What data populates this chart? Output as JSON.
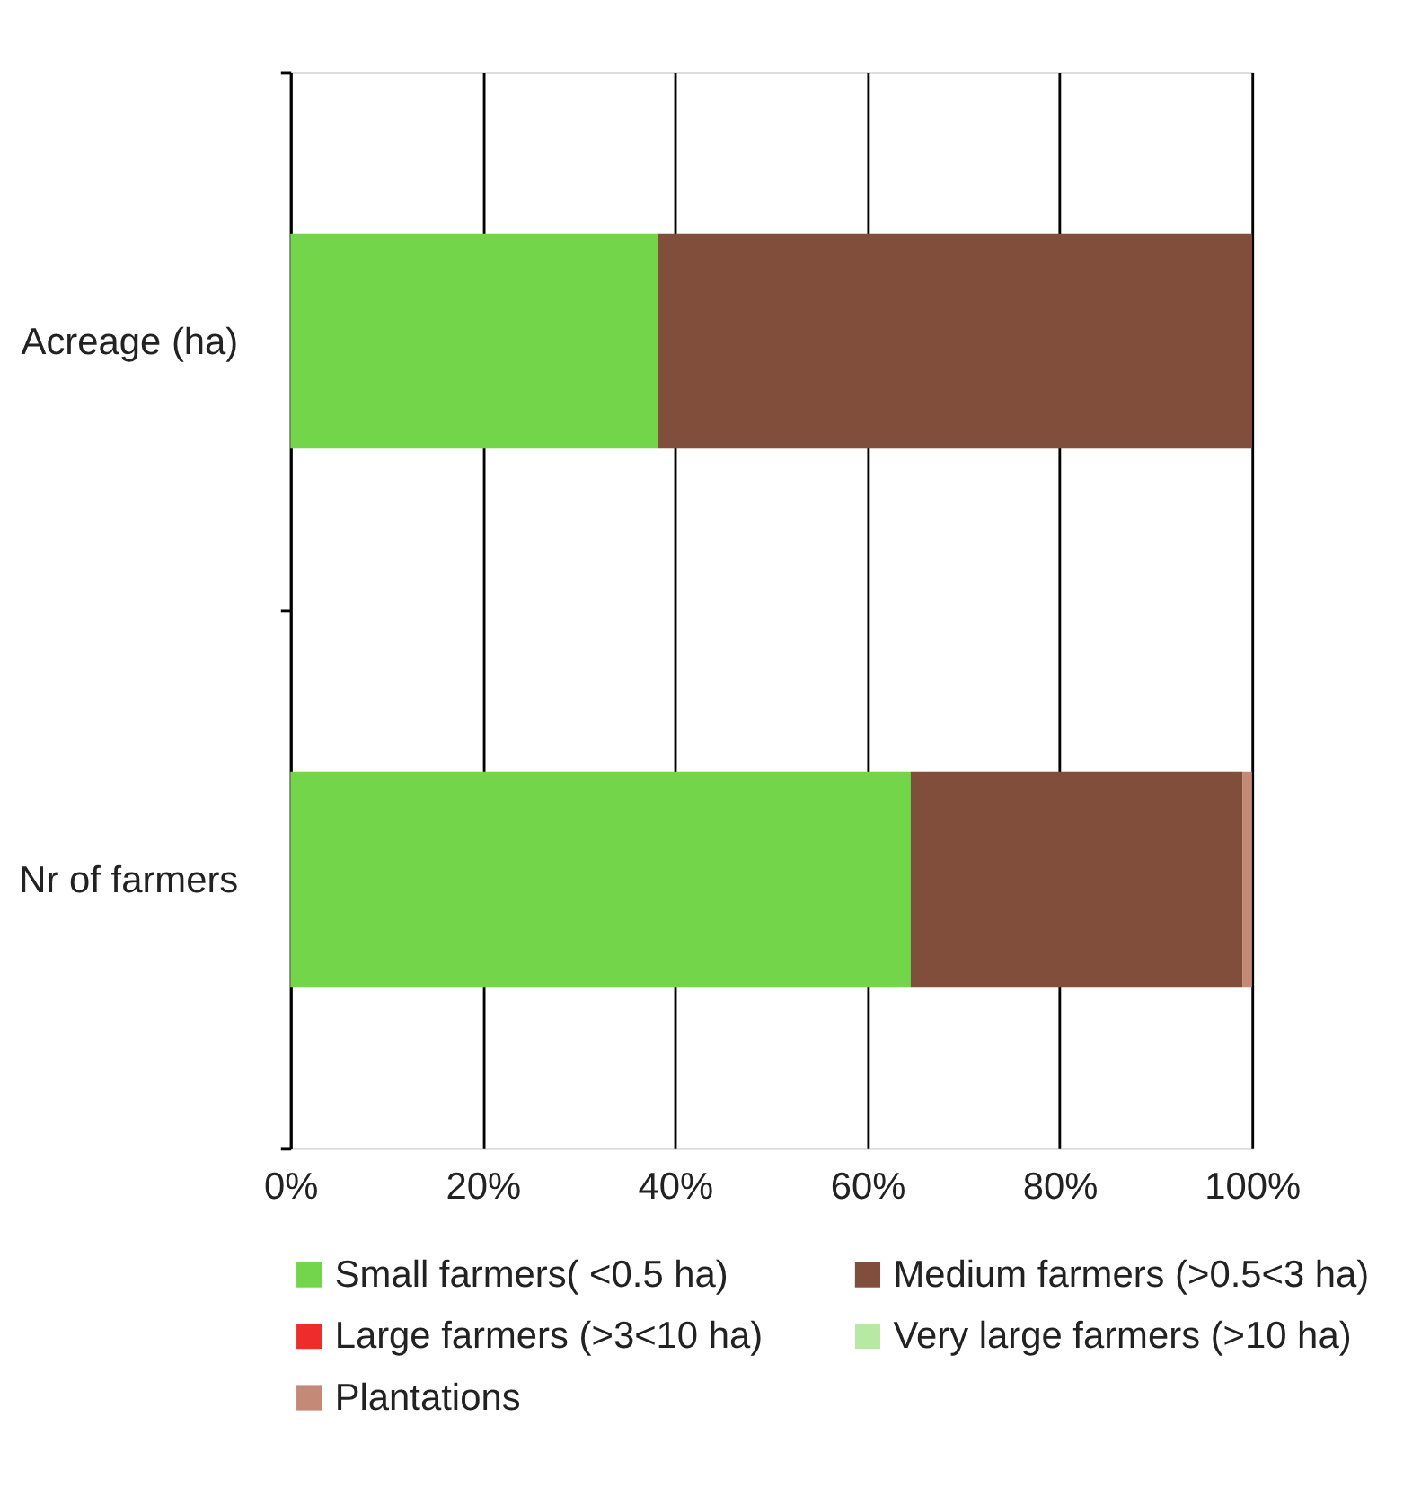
{
  "chart_data": {
    "type": "bar",
    "orientation": "horizontal",
    "stacked": true,
    "categories": [
      "Acreage (ha)",
      "Nr of farmers"
    ],
    "series": [
      {
        "name": "Small farmers( <0.5 ha)",
        "color": "#72d54a",
        "values": [
          38.2,
          64.5
        ]
      },
      {
        "name": "Medium farmers (>0.5<3 ha)",
        "color": "#804e3b",
        "values": [
          61.8,
          34.5
        ]
      },
      {
        "name": "Large farmers (>3<10 ha)",
        "color": "#ee2c2c",
        "values": [
          0,
          0
        ]
      },
      {
        "name": "Very large farmers (>10 ha)",
        "color": "#b7e9a3",
        "values": [
          0,
          0
        ]
      },
      {
        "name": "Plantations",
        "color": "#c48a78",
        "values": [
          0,
          1.0
        ]
      }
    ],
    "xlim": [
      0,
      100
    ],
    "xticks": [
      {
        "value": 0,
        "label": "0%"
      },
      {
        "value": 20,
        "label": "20%"
      },
      {
        "value": 40,
        "label": "40%"
      },
      {
        "value": 60,
        "label": "60%"
      },
      {
        "value": 80,
        "label": "80%"
      },
      {
        "value": 100,
        "label": "100%"
      }
    ],
    "grid": "x",
    "legend": "bottom"
  }
}
